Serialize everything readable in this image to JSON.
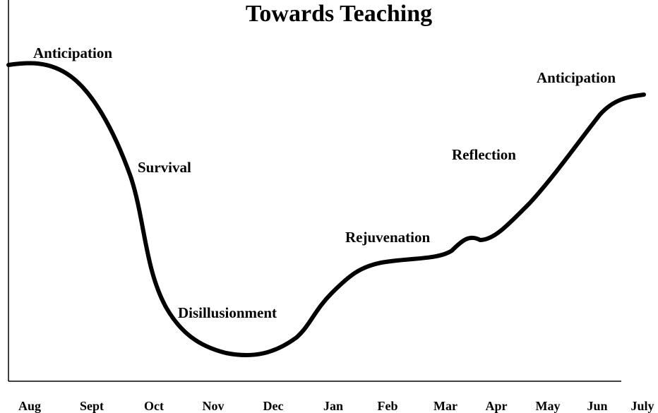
{
  "title": "Towards Teaching",
  "phases": [
    "Anticipation",
    "Survival",
    "Disillusionment",
    "Rejuvenation",
    "Reflection",
    "Anticipation"
  ],
  "months": [
    "Aug",
    "Sept",
    "Oct",
    "Nov",
    "Dec",
    "Jan",
    "Feb",
    "Mar",
    "Apr",
    "May",
    "Jun",
    "July"
  ]
}
